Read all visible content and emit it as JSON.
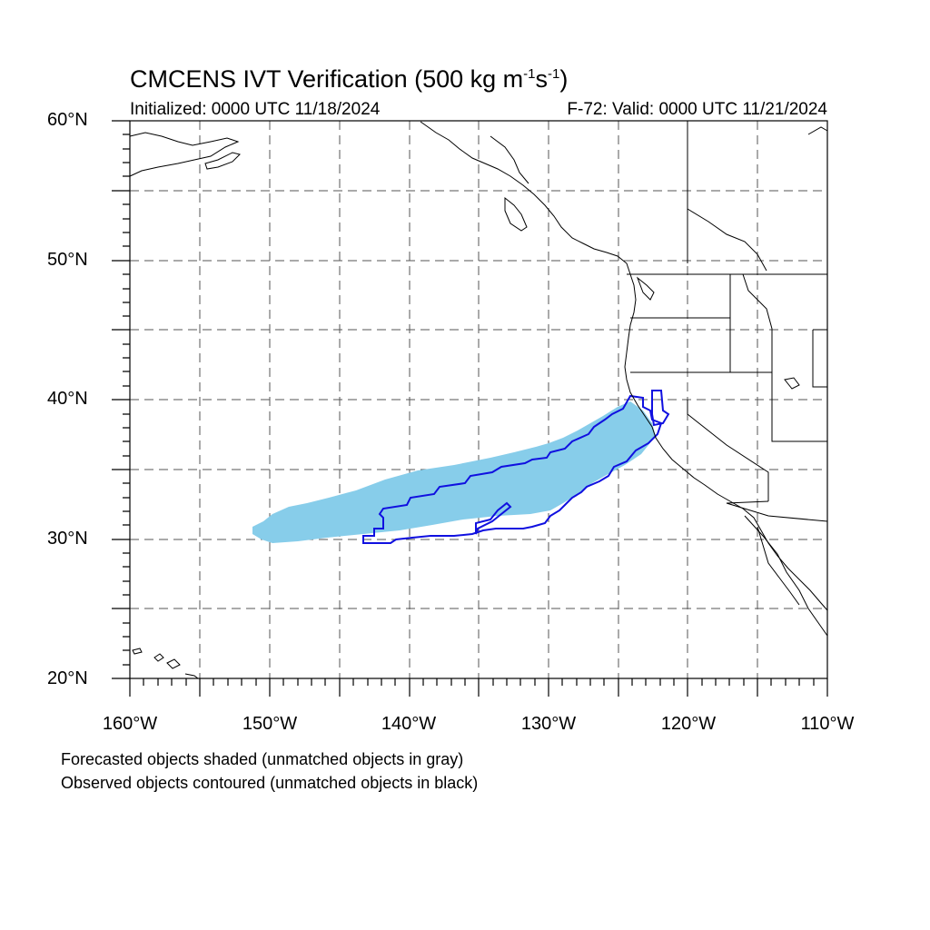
{
  "title_main": "CMCENS IVT Verification (500 kg m",
  "title_sup1": "-1",
  "title_mid": "s",
  "title_sup2": "-1",
  "title_end": ")",
  "init_label": "Initialized: 0000 UTC 11/18/2024",
  "valid_label": "F-72: Valid: 0000 UTC 11/21/2024",
  "lat_labels": [
    "60°N",
    "50°N",
    "40°N",
    "30°N",
    "20°N"
  ],
  "lon_labels": [
    "160°W",
    "150°W",
    "140°W",
    "130°W",
    "120°W",
    "110°W"
  ],
  "notes": [
    "Forecasted objects shaded (unmatched objects in gray)",
    "Observed objects contoured (unmatched objects in black)"
  ],
  "map": {
    "lat_range": [
      20,
      60
    ],
    "lon_range": [
      -160,
      -110
    ],
    "grid_interval_deg": 5,
    "forecast_fill_color": "#87cdea",
    "observed_contour_color": "#1010e0"
  }
}
